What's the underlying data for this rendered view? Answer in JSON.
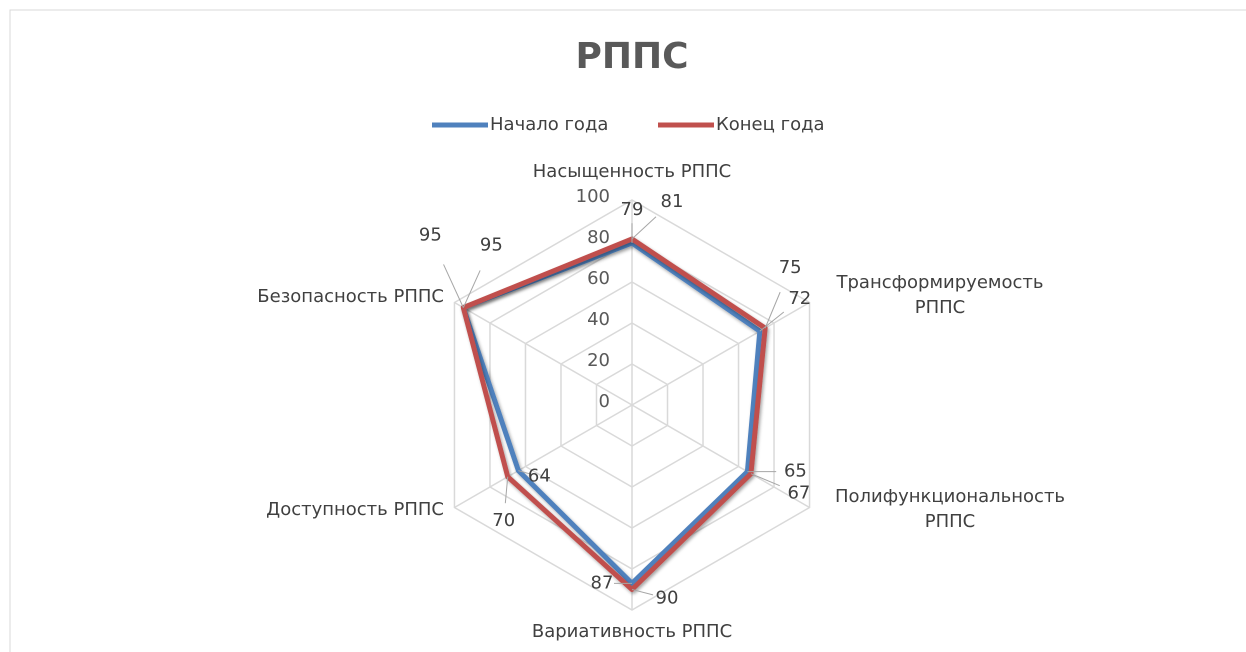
{
  "chart_data": {
    "type": "radar",
    "title": "РППС",
    "categories": [
      "Насыщенность РППС",
      "Трансформируемость РППС",
      "Полифункциональность РППС",
      "Вариативность РППС",
      "Доступность  РППС",
      "Безопасность РППС"
    ],
    "series": [
      {
        "name": "Начало года",
        "color": "#4f81bd",
        "values": [
          79,
          72,
          65,
          87,
          64,
          95
        ]
      },
      {
        "name": "Конец года",
        "color": "#c0504d",
        "values": [
          81,
          75,
          67,
          90,
          70,
          95
        ]
      }
    ],
    "rlim": [
      0,
      100
    ],
    "rticks": [
      0,
      20,
      40,
      60,
      80,
      100
    ],
    "grid": true,
    "legend": "top"
  }
}
